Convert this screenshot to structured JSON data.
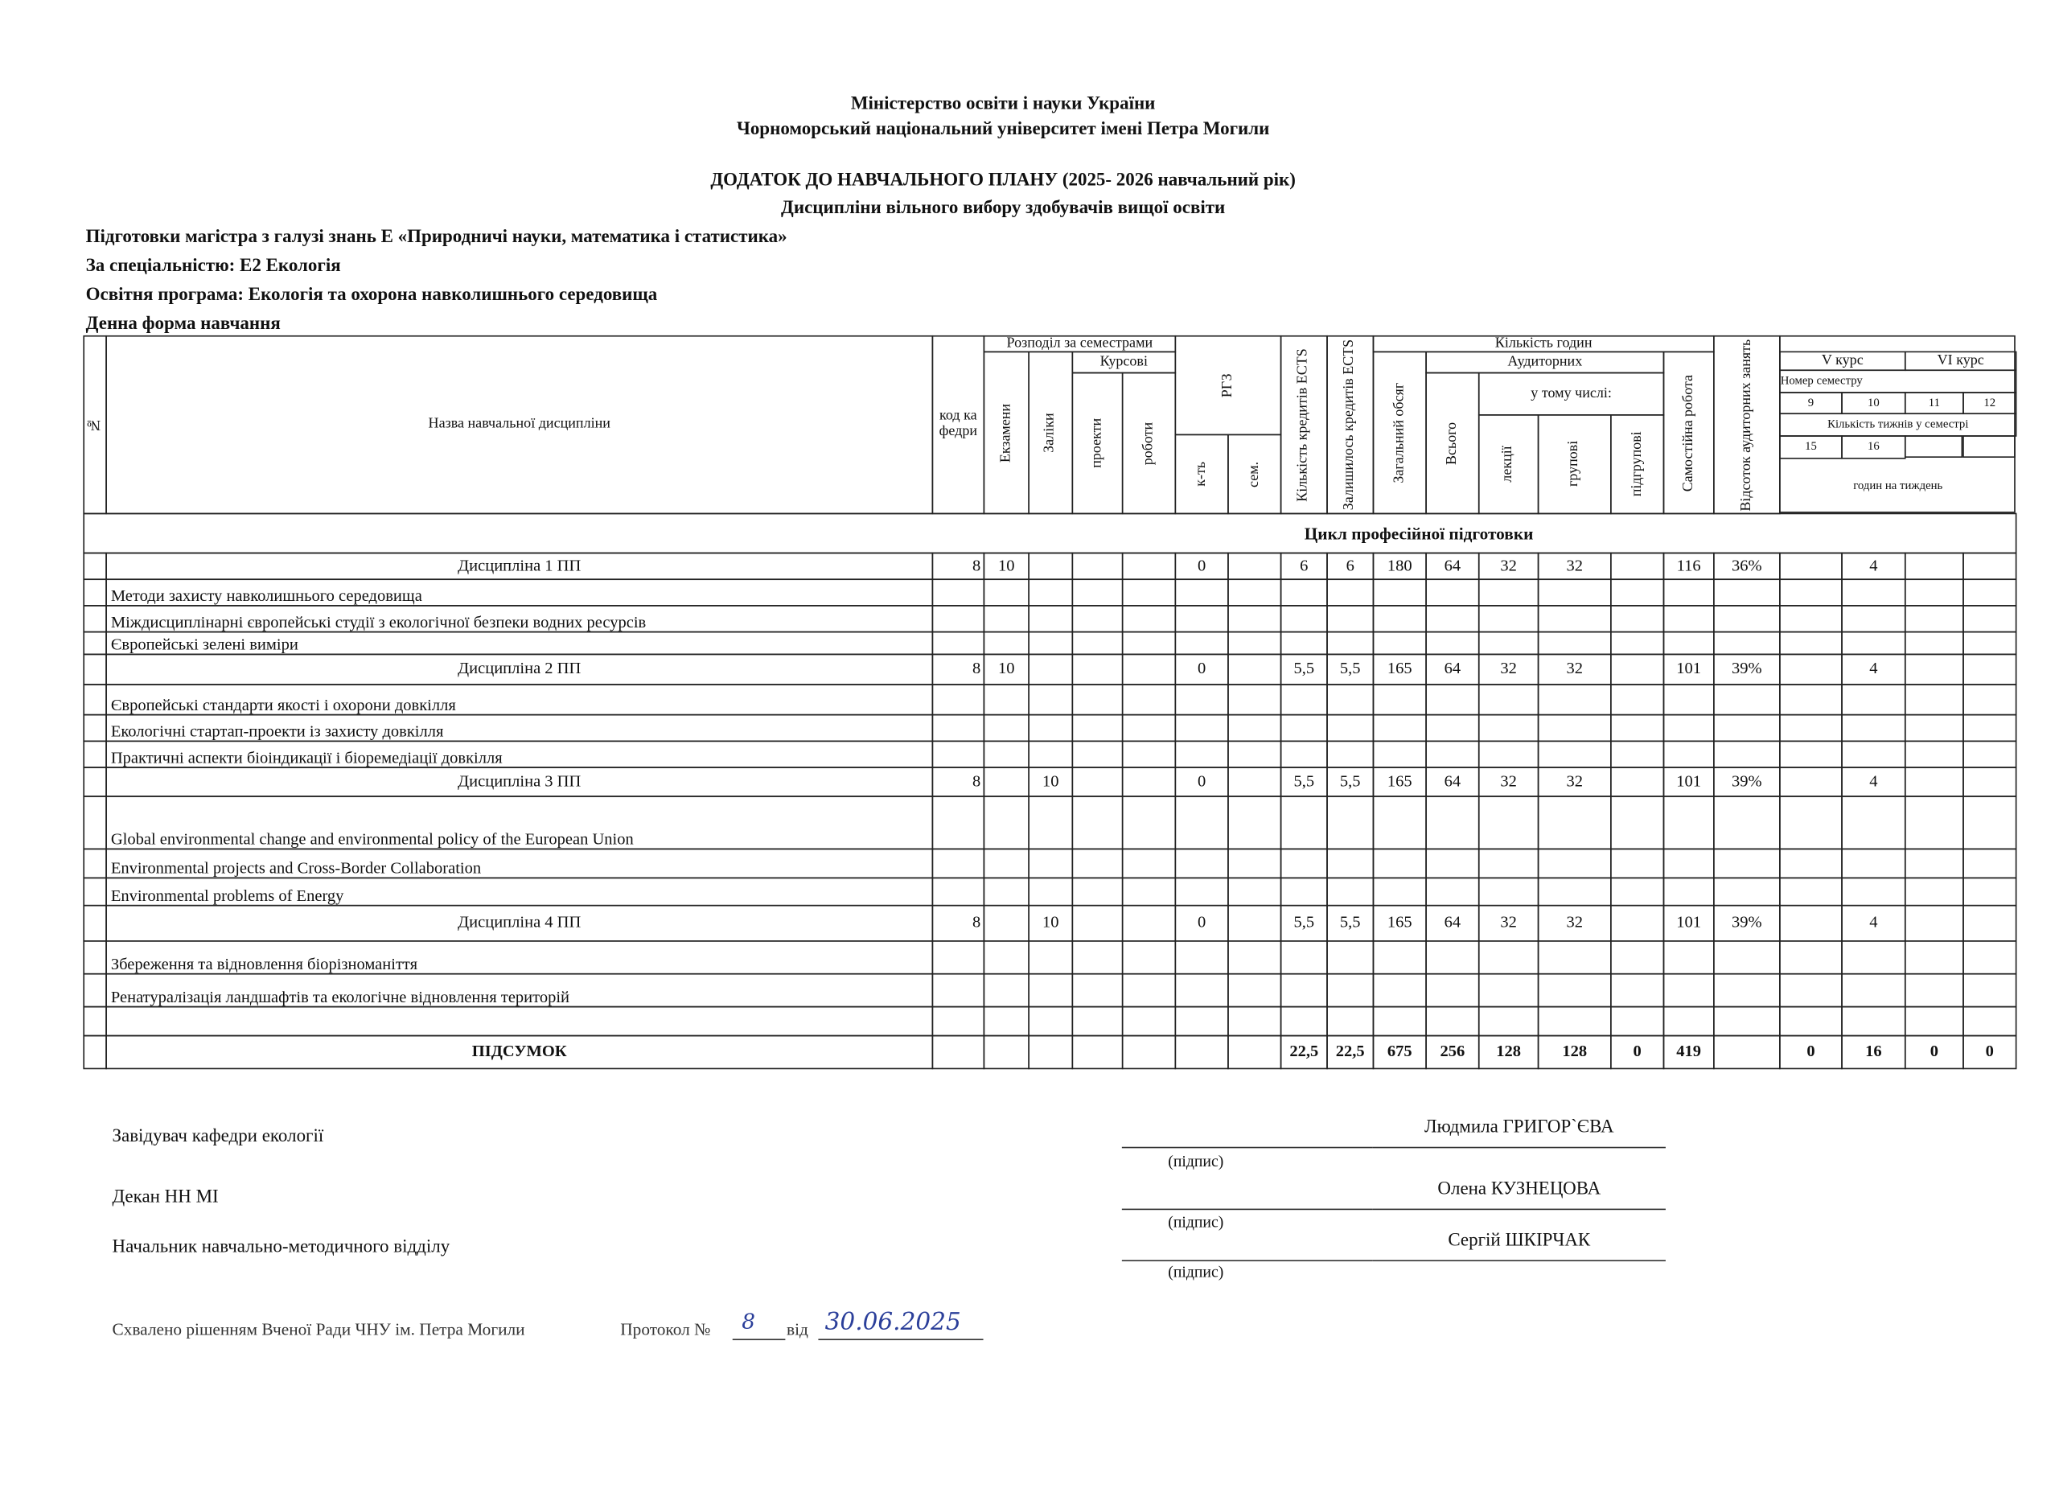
{
  "header": {
    "ministry": "Міністерство освіти і науки України",
    "university": "Чорноморський національний університет  імені Петра Могили",
    "title": "ДОДАТОК ДО НАВЧАЛЬНОГО ПЛАНУ (2025- 2026 навчальний рік)",
    "subtitle": "Дисципліни вільного вибору здобувачів вищої освіти"
  },
  "program": {
    "lines": [
      "Підготовки магістра з галузі знань Е «Природничі науки, математика і статистика»",
      "За спеціальністю: Е2 Екологія",
      "Освітня програма: Екологія та охорона навколишнього середовища",
      "Денна форма навчання"
    ]
  },
  "table": {
    "header": [
      "№",
      "Назва навчальної дисципліни",
      "код кафедри",
      "Розподіл за семестрами",
      "Екзамени",
      "Заліки",
      "Курсові",
      "проекти",
      "роботи",
      "РГЗ",
      "к-ть",
      "сем.",
      "Кількість кредитів ECTS",
      "Залишилось кредитів ECTS",
      "Кількість годин",
      "Загальний обсяг",
      "Аудиторних",
      "Всього",
      "у тому числі:",
      "лекції",
      "групові",
      "підгрупові",
      "Самостійна робота",
      "Відсоток аудиторних занять",
      "V курс",
      "VI курс",
      "Номер семестру",
      "9",
      "10",
      "11",
      "12",
      "Кількість тижнів у семестрі",
      "15",
      "16",
      "годин на тиждень"
    ],
    "cycle": "Цикл професійної підготовки",
    "rows": [
      {
        "name": "Дисципліна 1 ПП",
        "cells": [
          "8",
          "10",
          null,
          null,
          null,
          "0",
          null,
          "6",
          "6",
          "180",
          "64",
          "32",
          "32",
          null,
          "116",
          "36%",
          null,
          "4",
          null,
          null
        ]
      },
      {
        "name": "Методи захисту навколишнього середовища"
      },
      {
        "name": "Міждисциплінарні європейські студії з екологічної безпеки водних ресурсів"
      },
      {
        "name": "Європейські зелені виміри"
      },
      {
        "name": "Дисципліна 2 ПП",
        "cells": [
          "8",
          "10",
          null,
          null,
          null,
          "0",
          null,
          "5,5",
          "5,5",
          "165",
          "64",
          "32",
          "32",
          null,
          "101",
          "39%",
          null,
          "4",
          null,
          null
        ]
      },
      {
        "name": "Європейські стандарти якості і охорони довкілля"
      },
      {
        "name": "Екологічні стартап-проекти із захисту довкілля"
      },
      {
        "name": "Практичні аспекти біоіндикації і біоремедіації довкілля"
      },
      {
        "name": "Дисципліна 3 ПП",
        "cells": [
          "8",
          null,
          "10",
          null,
          null,
          "0",
          null,
          "5,5",
          "5,5",
          "165",
          "64",
          "32",
          "32",
          null,
          "101",
          "39%",
          null,
          "4",
          null,
          null
        ]
      },
      {
        "name": "Global environmental change and environmental policy of the European Union"
      },
      {
        "name": "Environmental projects and Cross-Border Collaboration"
      },
      {
        "name": "Environmental problems of Energy"
      },
      {
        "name": "Дисципліна 4 ПП",
        "cells": [
          "8",
          null,
          "10",
          null,
          null,
          "0",
          null,
          "5,5",
          "5,5",
          "165",
          "64",
          "32",
          "32",
          null,
          "101",
          "39%",
          null,
          "4",
          null,
          null
        ]
      },
      {
        "name": "Збереження та відновлення біорізноманіття"
      },
      {
        "name": "Ренатуралізація ландшафтів та екологічне відновлення територій"
      }
    ],
    "total": {
      "name": "ПІДСУМОК",
      "cells": [
        null,
        null,
        null,
        null,
        null,
        null,
        null,
        "22,5",
        "22,5",
        "675",
        "256",
        "128",
        "128",
        "0",
        "419",
        null,
        "0",
        "16",
        "0",
        "0"
      ]
    }
  },
  "signatures": [
    {
      "role": "Завідувач кафедри екології",
      "sign": "(підпис)",
      "name": "Людмила ГРИГОР`ЄВА"
    },
    {
      "role": "Декан НН МІ",
      "sign": "(підпис)",
      "name": "Олена КУЗНЕЦОВА"
    },
    {
      "role": "Начальник навчально-методичного відділу",
      "sign": "(підпис)",
      "name": "Сергій ШКІРЧАК"
    }
  ],
  "approval": {
    "text": "Схвалено рішенням Вченої Ради ЧНУ ім. Петра Могили",
    "protocol": "Протокол №",
    "number": "8",
    "from": "від",
    "date": "30.06.2025"
  }
}
